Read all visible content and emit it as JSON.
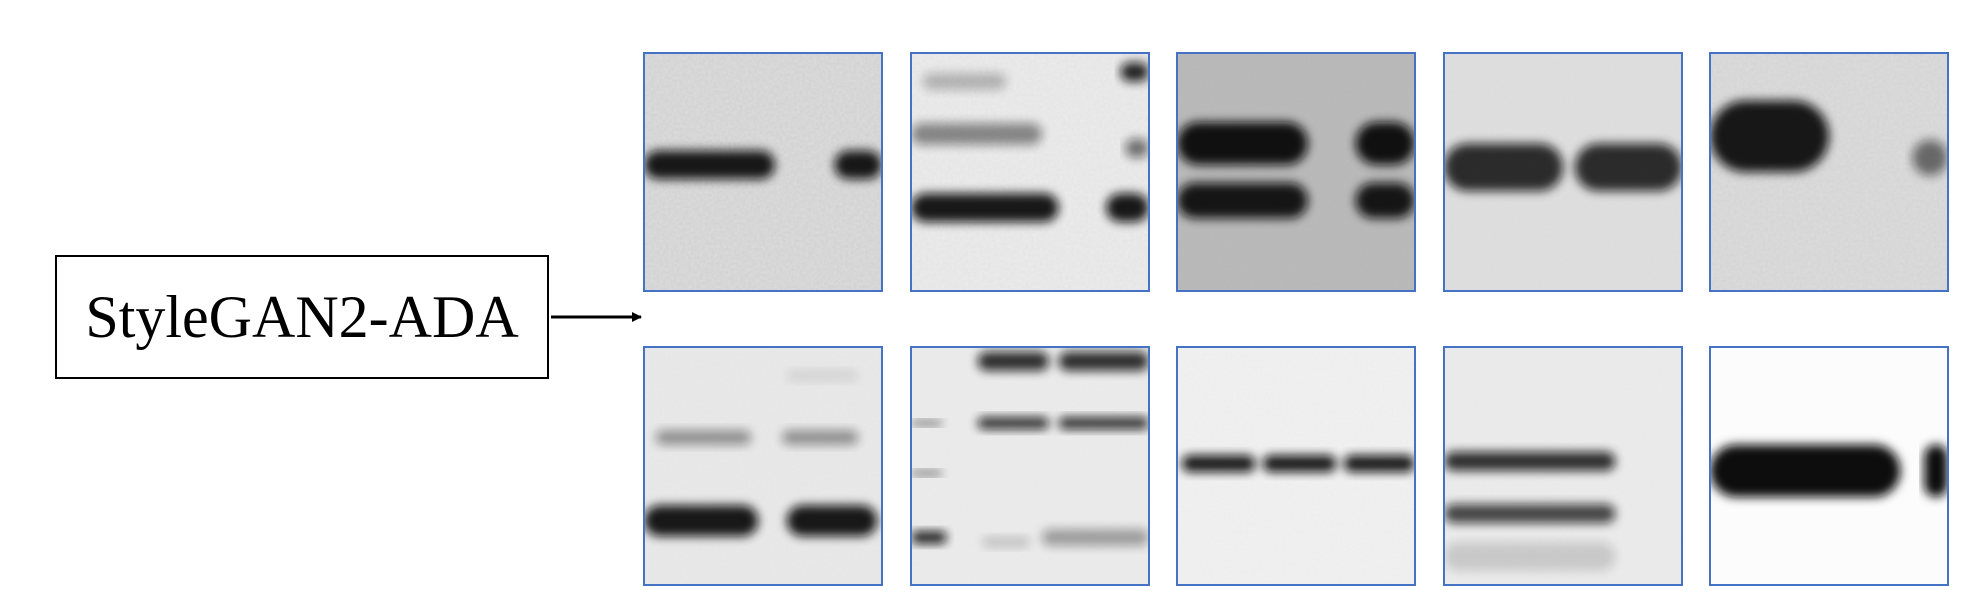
{
  "label": "StyleGAN2-ADA",
  "tile_border_color": "#4472c4",
  "rows": [
    [
      {
        "bands": [
          {
            "y": 0.47,
            "thick": 0.12,
            "dark": 0.95,
            "lanes": [
              [
                0.0,
                0.55
              ],
              [
                0.8,
                1.0
              ]
            ]
          }
        ],
        "bg": 0.86,
        "noise": 0.35
      },
      {
        "bands": [
          {
            "y": 0.12,
            "thick": 0.07,
            "dark": 0.25,
            "lanes": [
              [
                0.05,
                0.4
              ]
            ]
          },
          {
            "y": 0.34,
            "thick": 0.09,
            "dark": 0.45,
            "lanes": [
              [
                0.0,
                0.55
              ]
            ]
          },
          {
            "y": 0.65,
            "thick": 0.12,
            "dark": 0.95,
            "lanes": [
              [
                0.0,
                0.62
              ],
              [
                0.82,
                1.0
              ]
            ]
          },
          {
            "y": 0.08,
            "thick": 0.08,
            "dark": 0.9,
            "lanes": [
              [
                0.88,
                1.0
              ]
            ]
          },
          {
            "y": 0.4,
            "thick": 0.08,
            "dark": 0.55,
            "lanes": [
              [
                0.9,
                1.0
              ]
            ]
          }
        ],
        "bg": 0.92,
        "noise": 0.15
      },
      {
        "bands": [
          {
            "y": 0.38,
            "thick": 0.18,
            "dark": 0.98,
            "lanes": [
              [
                0.0,
                0.55
              ],
              [
                0.75,
                1.0
              ]
            ]
          },
          {
            "y": 0.62,
            "thick": 0.15,
            "dark": 0.95,
            "lanes": [
              [
                0.0,
                0.55
              ],
              [
                0.75,
                1.0
              ]
            ]
          }
        ],
        "bg": 0.72,
        "noise": 0.45
      },
      {
        "bands": [
          {
            "y": 0.48,
            "thick": 0.2,
            "dark": 0.85,
            "lanes": [
              [
                0.0,
                0.5
              ],
              [
                0.55,
                1.0
              ]
            ]
          }
        ],
        "bg": 0.87,
        "noise": 0.05
      },
      {
        "bands": [
          {
            "y": 0.35,
            "thick": 0.3,
            "dark": 0.95,
            "lanes": [
              [
                0.0,
                0.5
              ]
            ]
          },
          {
            "y": 0.44,
            "thick": 0.15,
            "dark": 0.55,
            "lanes": [
              [
                0.85,
                1.0
              ]
            ]
          }
        ],
        "bg": 0.86,
        "noise": 0.25
      }
    ],
    [
      {
        "bands": [
          {
            "y": 0.38,
            "thick": 0.06,
            "dark": 0.4,
            "lanes": [
              [
                0.05,
                0.45
              ],
              [
                0.58,
                0.9
              ]
            ]
          },
          {
            "y": 0.73,
            "thick": 0.13,
            "dark": 0.95,
            "lanes": [
              [
                0.0,
                0.48
              ],
              [
                0.6,
                0.98
              ]
            ]
          },
          {
            "y": 0.12,
            "thick": 0.04,
            "dark": 0.1,
            "lanes": [
              [
                0.6,
                0.9
              ]
            ]
          }
        ],
        "bg": 0.91,
        "noise": 0.05
      },
      {
        "bands": [
          {
            "y": 0.06,
            "thick": 0.08,
            "dark": 0.85,
            "lanes": [
              [
                0.28,
                0.58
              ],
              [
                0.62,
                1.0
              ]
            ]
          },
          {
            "y": 0.32,
            "thick": 0.05,
            "dark": 0.85,
            "lanes": [
              [
                0.28,
                0.58
              ],
              [
                0.62,
                1.0
              ]
            ]
          },
          {
            "y": 0.32,
            "thick": 0.02,
            "dark": 0.6,
            "lanes": [
              [
                0.0,
                0.13
              ]
            ]
          },
          {
            "y": 0.53,
            "thick": 0.02,
            "dark": 0.6,
            "lanes": [
              [
                0.0,
                0.13
              ]
            ]
          },
          {
            "y": 0.8,
            "thick": 0.05,
            "dark": 0.95,
            "lanes": [
              [
                0.0,
                0.15
              ]
            ]
          },
          {
            "y": 0.8,
            "thick": 0.07,
            "dark": 0.35,
            "lanes": [
              [
                0.55,
                1.0
              ]
            ]
          },
          {
            "y": 0.82,
            "thick": 0.04,
            "dark": 0.2,
            "lanes": [
              [
                0.3,
                0.5
              ]
            ]
          }
        ],
        "bg": 0.92,
        "noise": 0.05
      },
      {
        "bands": [
          {
            "y": 0.49,
            "thick": 0.07,
            "dark": 0.95,
            "lanes": [
              [
                0.02,
                0.33
              ],
              [
                0.36,
                0.67
              ],
              [
                0.7,
                1.0
              ]
            ]
          }
        ],
        "bg": 0.94,
        "noise": 0.05
      },
      {
        "bands": [
          {
            "y": 0.48,
            "thick": 0.08,
            "dark": 0.85,
            "lanes": [
              [
                0.0,
                0.72
              ]
            ]
          },
          {
            "y": 0.7,
            "thick": 0.08,
            "dark": 0.75,
            "lanes": [
              [
                0.0,
                0.72
              ]
            ]
          },
          {
            "y": 0.88,
            "thick": 0.12,
            "dark": 0.15,
            "lanes": [
              [
                0.0,
                0.72
              ]
            ]
          }
        ],
        "bg": 0.92,
        "noise": 0.05
      },
      {
        "bands": [
          {
            "y": 0.52,
            "thick": 0.22,
            "dark": 1.0,
            "lanes": [
              [
                0.0,
                0.8
              ],
              [
                0.9,
                1.0
              ]
            ]
          }
        ],
        "bg": 0.99,
        "noise": 0.0
      }
    ]
  ]
}
